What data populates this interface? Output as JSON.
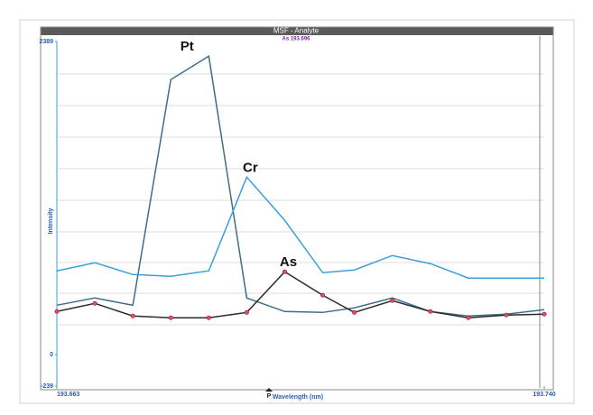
{
  "chart_data": {
    "type": "line",
    "title": "MSF - Analyte",
    "subtitle": "As 193.696",
    "x_label": "Wavelength (nm)",
    "y_label": "Intensity",
    "marker_label": "P",
    "x": [
      193.663,
      193.669,
      193.675,
      193.681,
      193.687,
      193.693,
      193.699,
      193.705,
      193.71,
      193.716,
      193.722,
      193.728,
      193.734,
      193.74
    ],
    "xlim": [
      193.663,
      193.74
    ],
    "xticks": [
      {
        "value": 193.663,
        "label": "193.663"
      },
      {
        "value": 193.74,
        "label": "193.740"
      }
    ],
    "ylim": [
      -239,
      2389
    ],
    "yticks": [
      -239,
      0,
      2389
    ],
    "series": [
      {
        "name": "Pt",
        "color": "#3d6e8a",
        "values": [
          378,
          433,
          378,
          2098,
          2277,
          433,
          330,
          323,
          358,
          433,
          330,
          296,
          310,
          344
        ]
      },
      {
        "name": "Cr",
        "color": "#3aa0d8",
        "values": [
          640,
          702,
          612,
          599,
          640,
          1355,
          1025,
          626,
          647,
          757,
          695,
          585,
          585,
          585
        ]
      },
      {
        "name": "As",
        "color": "#2b2b2b",
        "marker_color": "#e05060",
        "values": [
          330,
          392,
          296,
          282,
          282,
          323,
          633,
          454,
          323,
          413,
          330,
          282,
          303,
          310
        ]
      }
    ]
  }
}
